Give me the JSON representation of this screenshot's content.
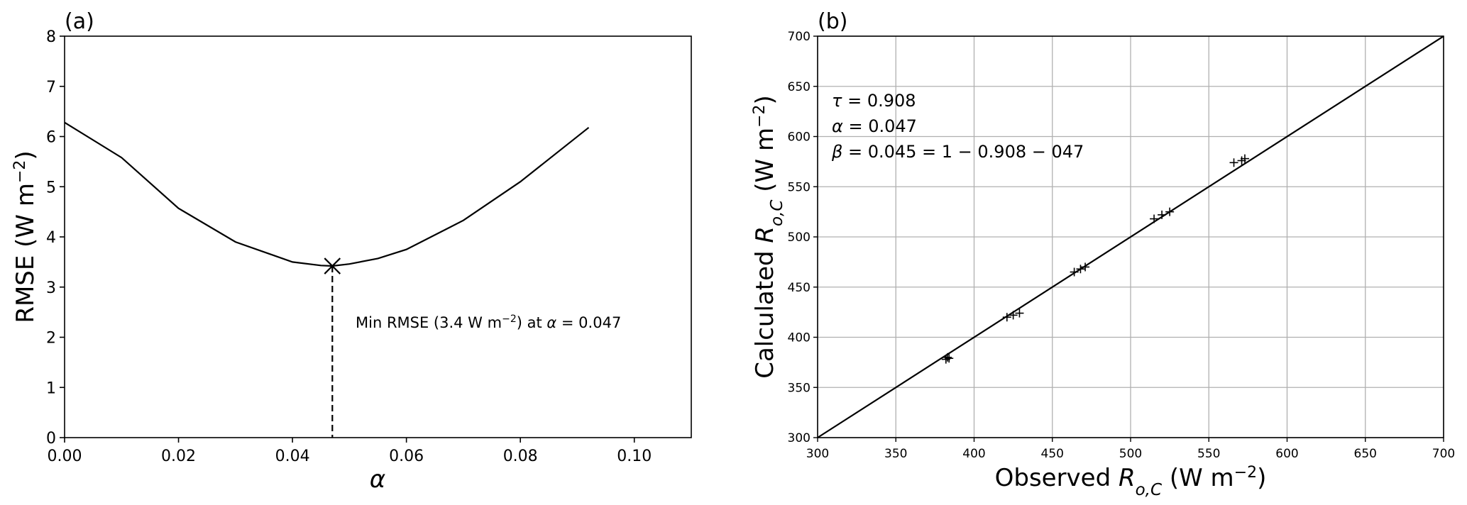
{
  "chart_data": [
    {
      "panel": "(a)",
      "type": "line",
      "xlabel": "α",
      "ylabel": "RMSE (W m",
      "ylabel_sup": "−2",
      "ylabel_tail": ")",
      "xlim": [
        0,
        0.11
      ],
      "ylim": [
        0,
        8
      ],
      "xticks": [
        0.0,
        0.02,
        0.04,
        0.06,
        0.08,
        0.1
      ],
      "xtick_labels": [
        "0.00",
        "0.02",
        "0.04",
        "0.06",
        "0.08",
        "0.10"
      ],
      "yticks": [
        0,
        1,
        2,
        3,
        4,
        5,
        6,
        7,
        8
      ],
      "ytick_labels": [
        "0",
        "1",
        "2",
        "3",
        "4",
        "5",
        "6",
        "7",
        "8"
      ],
      "grid": false,
      "series": [
        {
          "x": [
            0.0,
            0.01,
            0.02,
            0.03,
            0.04,
            0.045,
            0.047,
            0.05,
            0.055,
            0.06,
            0.07,
            0.08,
            0.092
          ],
          "y": [
            6.28,
            5.58,
            4.57,
            3.9,
            3.5,
            3.43,
            3.42,
            3.46,
            3.57,
            3.75,
            4.33,
            5.1,
            6.18
          ]
        }
      ],
      "minimum": {
        "x": 0.047,
        "y": 3.42
      },
      "annotation": {
        "prefix": "Min RMSE (3.4 W m",
        "sup": "−2",
        "middle": ") at ",
        "var": "α",
        "suffix": " = 0.047"
      }
    },
    {
      "panel": "(b)",
      "type": "scatter",
      "xlabel_prefix": "Observed ",
      "xlabel_var": "R",
      "xlabel_sub": "o,C",
      "xlabel_unit": " (W m",
      "xlabel_sup": "−2",
      "xlabel_tail": ")",
      "ylabel_prefix": "Calculated ",
      "ylabel_var": "R",
      "ylabel_sub": "o,C",
      "ylabel_unit": " (W m",
      "ylabel_sup": "−2",
      "ylabel_tail": ")",
      "xlim": [
        300,
        700
      ],
      "ylim": [
        300,
        700
      ],
      "xticks": [
        300,
        350,
        400,
        450,
        500,
        550,
        600,
        650,
        700
      ],
      "xtick_labels": [
        "300",
        "350",
        "400",
        "450",
        "500",
        "550",
        "600",
        "650",
        "700"
      ],
      "yticks": [
        300,
        350,
        400,
        450,
        500,
        550,
        600,
        650,
        700
      ],
      "ytick_labels": [
        "300",
        "350",
        "400",
        "450",
        "500",
        "550",
        "600",
        "650",
        "700"
      ],
      "grid": true,
      "one_to_one_line": [
        [
          300,
          300
        ],
        [
          700,
          700
        ]
      ],
      "points": {
        "x": [
          382,
          383,
          384,
          421,
          425,
          429,
          464,
          468,
          471,
          515,
          520,
          525,
          566,
          571,
          573
        ],
        "y": [
          378,
          380,
          379,
          420,
          422,
          424,
          465,
          468,
          470,
          518,
          522,
          525,
          574,
          576,
          578
        ]
      },
      "annotations": [
        {
          "var": "τ",
          "text": " = 0.908"
        },
        {
          "var": "α",
          "text": " = 0.047"
        },
        {
          "var": "β",
          "text": " = 0.045 = 1 − 0.908 − 047"
        }
      ],
      "marker": "+"
    }
  ]
}
